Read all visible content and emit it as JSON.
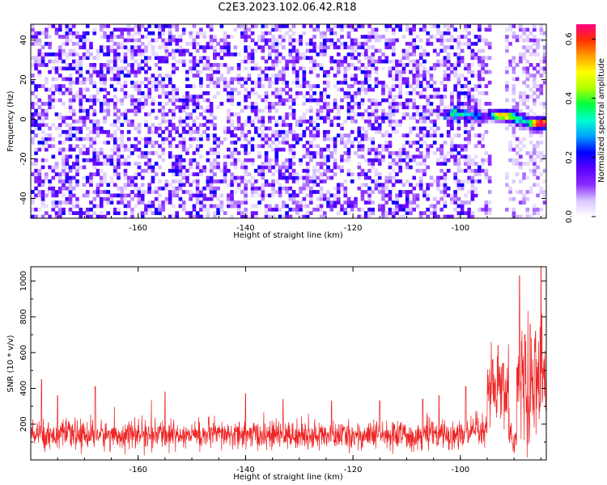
{
  "title": "C2E3.2023.102.06.42.R18",
  "chart_data": [
    {
      "type": "heatmap",
      "xlabel": "Height of straight line (km)",
      "ylabel": "Frequency (Hz)",
      "xlim": [
        -180,
        -84
      ],
      "ylim": [
        -50,
        48
      ],
      "xticks": [
        -160,
        -140,
        -120,
        -100
      ],
      "yticks": [
        -40,
        -20,
        0,
        20,
        40
      ],
      "colorbar": {
        "label": "Normalized spectral amplitude",
        "range": [
          0.0,
          0.65
        ],
        "ticks": [
          0.0,
          0.2,
          0.4,
          0.6
        ],
        "colors": [
          "#ffffff",
          "#d9c6ff",
          "#8a2bff",
          "#5a00ff",
          "#0000ff",
          "#00a0ff",
          "#00ffd0",
          "#00ff40",
          "#b0ff00",
          "#ffff00",
          "#ffa000",
          "#ff3000",
          "#ff0080"
        ]
      },
      "noise_level": 0.08,
      "signal_track": [
        {
          "x": -102,
          "y": 3,
          "amp": 0.18
        },
        {
          "x": -100,
          "y": 3,
          "amp": 0.25
        },
        {
          "x": -97,
          "y": 2,
          "amp": 0.22
        },
        {
          "x": -93,
          "y": 2,
          "amp": 0.45
        },
        {
          "x": -91,
          "y": 2,
          "amp": 0.35
        },
        {
          "x": -89,
          "y": 0,
          "amp": 0.3
        },
        {
          "x": -86,
          "y": -2,
          "amp": 0.55
        },
        {
          "x": -84,
          "y": -2,
          "amp": 0.5
        }
      ],
      "gap_x": [
        -94,
        -92
      ]
    },
    {
      "type": "line",
      "xlabel": "Height of straight line (km)",
      "ylabel": "SNR (10 * v/v)",
      "xlim": [
        -180,
        -84
      ],
      "ylim": [
        0,
        1080
      ],
      "xticks": [
        -160,
        -140,
        -120,
        -100
      ],
      "yticks": [
        200,
        400,
        600,
        800,
        1000
      ],
      "series": [
        {
          "color": "#ee2222",
          "baseline": [
            {
              "x": -180,
              "mean": 140,
              "spread": 70
            },
            {
              "x": -150,
              "mean": 140,
              "spread": 70
            },
            {
              "x": -120,
              "mean": 135,
              "spread": 70
            },
            {
              "x": -100,
              "mean": 140,
              "spread": 75
            },
            {
              "x": -96,
              "mean": 150,
              "spread": 80
            }
          ],
          "peaks": [
            {
              "x": -178,
              "y": 450
            },
            {
              "x": -175,
              "y": 360
            },
            {
              "x": -168,
              "y": 410
            },
            {
              "x": -155,
              "y": 380
            },
            {
              "x": -140,
              "y": 370
            },
            {
              "x": -133,
              "y": 340
            },
            {
              "x": -124,
              "y": 330
            },
            {
              "x": -115,
              "y": 330
            },
            {
              "x": -107,
              "y": 340
            },
            {
              "x": -104,
              "y": 360
            },
            {
              "x": -99,
              "y": 410
            },
            {
              "x": -94,
              "y": 560
            },
            {
              "x": -93,
              "y": 640
            },
            {
              "x": -92,
              "y": 540
            },
            {
              "x": -89,
              "y": 1030
            },
            {
              "x": -88,
              "y": 700
            },
            {
              "x": -87,
              "y": 760
            },
            {
              "x": -86,
              "y": 720
            },
            {
              "x": -85,
              "y": 1080
            }
          ],
          "regions": [
            {
              "from": -95,
              "to": -90,
              "mean": 380,
              "spread": 180
            },
            {
              "from": -90,
              "to": -84,
              "mean": 420,
              "spread": 300
            },
            {
              "from": -91,
              "to": -89.5,
              "mean": 120,
              "spread": 80
            }
          ]
        }
      ]
    }
  ]
}
